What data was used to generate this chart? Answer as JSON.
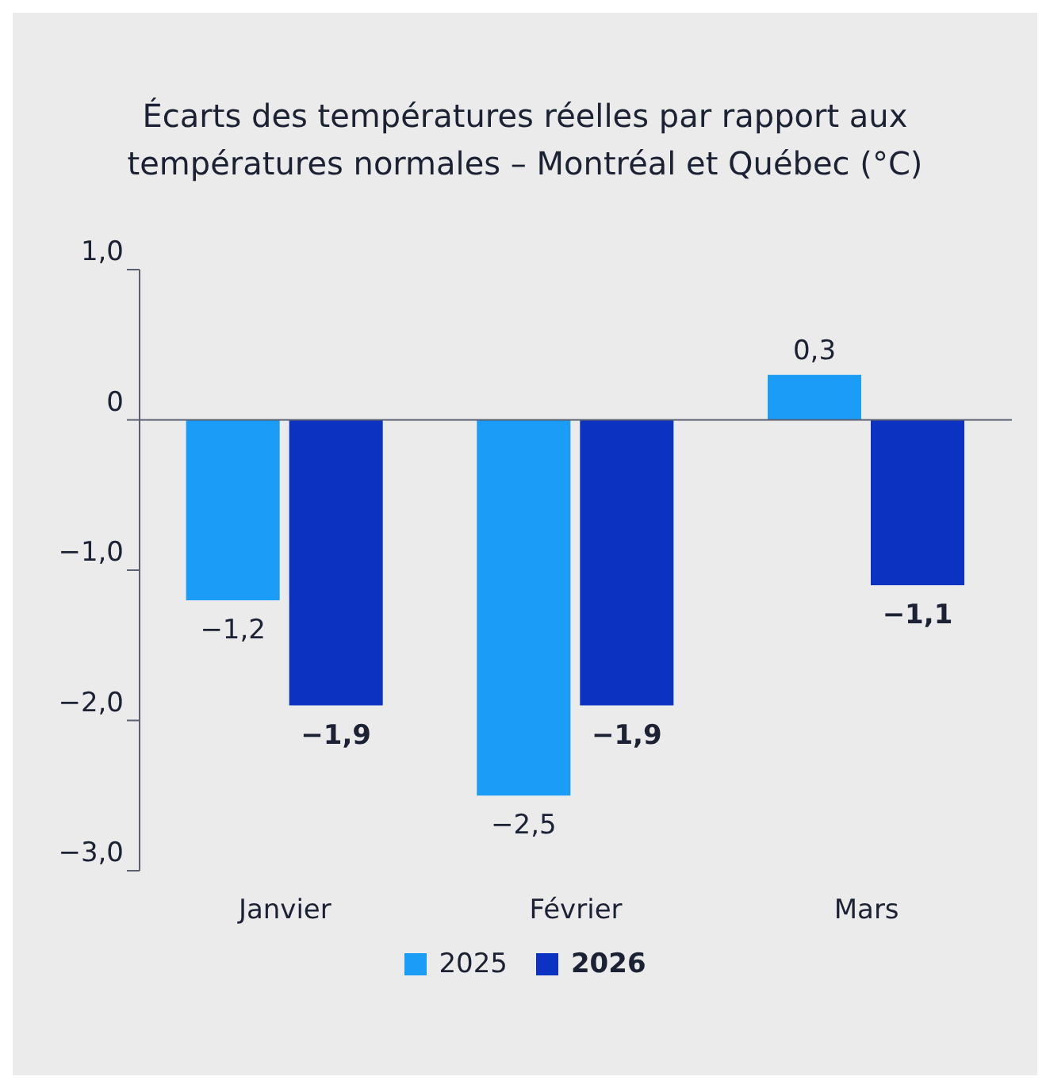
{
  "chart_data": {
    "type": "bar",
    "title": "Écarts des températures réelles par rapport aux températures normales – Montréal et Québec (°C)",
    "categories": [
      "Janvier",
      "Février",
      "Mars"
    ],
    "series": [
      {
        "name": "2025",
        "color": "#1a9cf7",
        "values": [
          -1.2,
          -2.5,
          0.3
        ],
        "value_labels": [
          "−1,2",
          "−2,5",
          "0,3"
        ]
      },
      {
        "name": "2026",
        "color": "#0b32c0",
        "values": [
          -1.9,
          -1.9,
          -1.1
        ],
        "value_labels": [
          "−1,9",
          "−1,9",
          "−1,1"
        ]
      }
    ],
    "ylim": [
      -3,
      1
    ],
    "yticks": [
      {
        "value": 1,
        "label": "1,0"
      },
      0,
      {
        "value": -1,
        "label": "−1,0"
      },
      {
        "value": -2,
        "label": "−2,0"
      },
      {
        "value": -3,
        "label": "−3,0"
      }
    ],
    "ref_lines": [
      {
        "axis": "y",
        "value": 0,
        "color": "#5a6070"
      }
    ],
    "grid": false,
    "legend": "bottom"
  }
}
